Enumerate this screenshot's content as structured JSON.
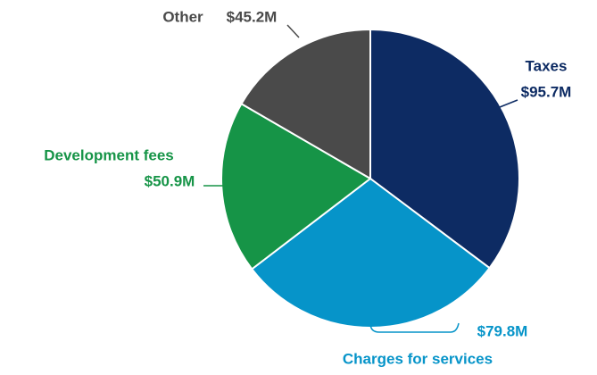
{
  "chart_data": {
    "type": "pie",
    "categories": [
      "Taxes",
      "Charges for services",
      "Development fees",
      "Other"
    ],
    "values": [
      95.7,
      79.8,
      50.9,
      45.2
    ],
    "value_labels": [
      "$95.7M",
      "$79.8M",
      "$50.9M",
      "$45.2M"
    ],
    "colors": [
      "#0d2b63",
      "#0694c9",
      "#169447",
      "#4a4a4a"
    ]
  }
}
